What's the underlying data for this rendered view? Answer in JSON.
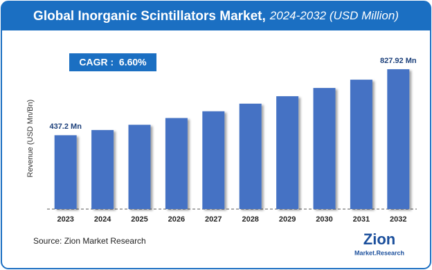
{
  "chart_data": {
    "type": "bar",
    "title": "Global Inorganic Scintillators Market,",
    "subtitle": "2024-2032 (USD Million)",
    "annotation": "CAGR :  6.60%",
    "y_label": "Revenue (USD Mn/Bn)",
    "source": "Source: Zion Market Research",
    "logo": "Zion",
    "logo_sub": "Market.Research",
    "categories": [
      "2023",
      "2024",
      "2025",
      "2026",
      "2027",
      "2028",
      "2029",
      "2030",
      "2031",
      "2032"
    ],
    "values": [
      437.2,
      468,
      499,
      539,
      579,
      624,
      668,
      717,
      766,
      827.92
    ],
    "value_labels": [
      "437.2 Mn",
      null,
      null,
      null,
      null,
      null,
      null,
      null,
      null,
      "827.92 Mn"
    ],
    "color": "#4472c4"
  }
}
